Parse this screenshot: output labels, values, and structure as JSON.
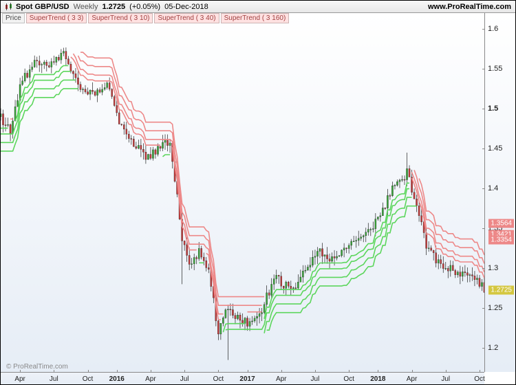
{
  "header": {
    "pair": "Spot GBP/USD",
    "timeframe": "Weekly",
    "price": "1.2725",
    "pct": "(+0.05%)",
    "date": "05-Dec-2018",
    "brand": "www.ProRealTime.com"
  },
  "indicators": [
    {
      "label": "Price",
      "type": "price"
    },
    {
      "label": "SuperTrend ( 3 3)",
      "type": "st"
    },
    {
      "label": "SuperTrend ( 3 10)",
      "type": "st"
    },
    {
      "label": "SuperTrend ( 3 40)",
      "type": "st"
    },
    {
      "label": "SuperTrend ( 3 160)",
      "type": "st"
    }
  ],
  "chart": {
    "ylim": [
      1.17,
      1.62
    ],
    "yticks": [
      {
        "v": 1.6,
        "label": "1.6"
      },
      {
        "v": 1.55,
        "label": "1.55"
      },
      {
        "v": 1.5,
        "label": "1.5",
        "bold": true
      },
      {
        "v": 1.45,
        "label": "1.45"
      },
      {
        "v": 1.4,
        "label": "1.4"
      },
      {
        "v": 1.35,
        "label": "1.35"
      },
      {
        "v": 1.3,
        "label": "1.3"
      },
      {
        "v": 1.25,
        "label": "1.25"
      },
      {
        "v": 1.2,
        "label": "1.2"
      }
    ],
    "xrange": [
      0,
      200
    ],
    "xticks": [
      {
        "i": 8,
        "label": "Apr"
      },
      {
        "i": 22,
        "label": "Jul"
      },
      {
        "i": 36,
        "label": "Oct"
      },
      {
        "i": 48,
        "label": "2016",
        "bold": true
      },
      {
        "i": 62,
        "label": "Apr"
      },
      {
        "i": 76,
        "label": "Jul"
      },
      {
        "i": 90,
        "label": "Oct"
      },
      {
        "i": 102,
        "label": "2017",
        "bold": true
      },
      {
        "i": 116,
        "label": "Apr"
      },
      {
        "i": 130,
        "label": "Jul"
      },
      {
        "i": 144,
        "label": "Oct"
      },
      {
        "i": 156,
        "label": "2018",
        "bold": true
      },
      {
        "i": 170,
        "label": "Apr"
      },
      {
        "i": 184,
        "label": "Jul"
      },
      {
        "i": 198,
        "label": "Oct"
      }
    ],
    "price_badges": [
      {
        "v": 1.3564,
        "label": "1.3564",
        "color": "#ed8888"
      },
      {
        "v": 1.3421,
        "label": "1.3421",
        "color": "#ed8888"
      },
      {
        "v": 1.3354,
        "label": "1.3354",
        "color": "#ed8888"
      },
      {
        "v": 1.2725,
        "label": "1.2725",
        "color": "#d4c740"
      }
    ],
    "watermark": "© ProRealTime.com",
    "colors": {
      "candle_up": "#3aa63a",
      "candle_down": "#c33b3b",
      "wick": "#222222",
      "st_up": "#5cd65c",
      "st_down": "#ed8888",
      "bg_top": "#ffffff",
      "bg_bottom": "#e6edf6"
    },
    "candle_width": 2.2
  }
}
